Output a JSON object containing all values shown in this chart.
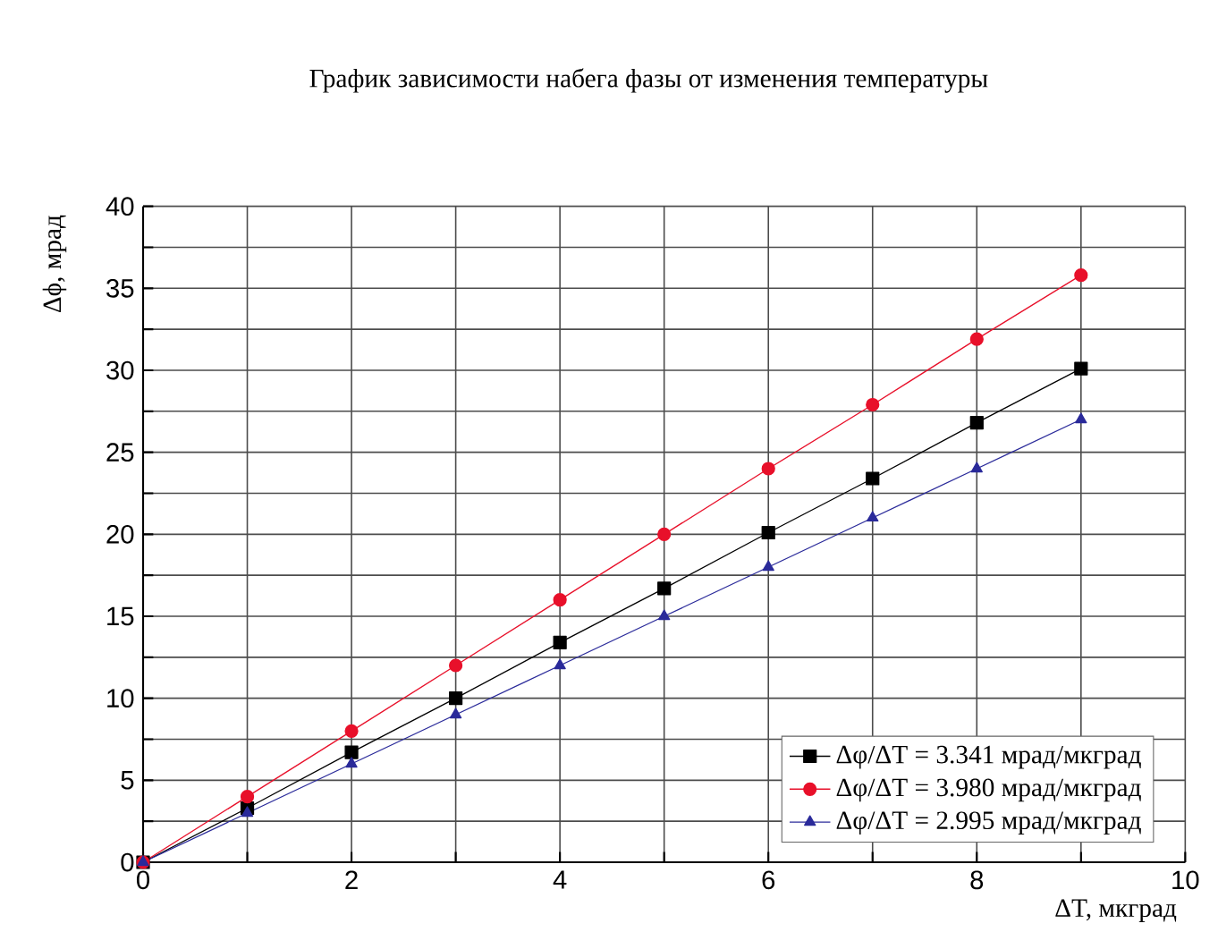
{
  "chart_data": {
    "type": "line",
    "title": "График зависимости набега фазы от изменения температуры",
    "xlabel": "ΔT, мкград",
    "ylabel": "Δϕ, мрад",
    "x": [
      0,
      1,
      2,
      3,
      4,
      5,
      6,
      7,
      8,
      9
    ],
    "series": [
      {
        "name": "Δφ/ΔT = 3.341 мрад/мкград",
        "color": "#000000",
        "marker": "square",
        "values": [
          0,
          3.3,
          6.7,
          10,
          13.4,
          16.7,
          20.1,
          23.4,
          26.8,
          30.1
        ]
      },
      {
        "name": "Δφ/ΔT = 3.980 мрад/мкград",
        "color": "#e8102a",
        "marker": "circle",
        "values": [
          0,
          4,
          8,
          12,
          16,
          20,
          24,
          27.9,
          31.9,
          35.8
        ]
      },
      {
        "name": "Δφ/ΔT = 2.995 мрад/мкград",
        "color": "#2a2a9a",
        "marker": "triangle",
        "values": [
          0,
          3,
          6,
          9,
          12,
          15,
          18,
          21,
          24,
          27
        ]
      }
    ],
    "xlim": [
      0,
      10
    ],
    "ylim": [
      0,
      40
    ],
    "xticks": [
      0,
      {
        "value": 1,
        "label": null
      },
      2,
      {
        "value": 3,
        "label": null
      },
      4,
      {
        "value": 5,
        "label": null
      },
      6,
      {
        "value": 7,
        "label": null
      },
      8,
      {
        "value": 9,
        "label": null
      },
      10
    ],
    "yticks": [
      0,
      {
        "value": 2.5,
        "label": null
      },
      5,
      {
        "value": 7.5,
        "label": null
      },
      10,
      {
        "value": 12.5,
        "label": null
      },
      15,
      {
        "value": 17.5,
        "label": null
      },
      20,
      {
        "value": 22.5,
        "label": null
      },
      25,
      {
        "value": 27.5,
        "label": null
      },
      30,
      {
        "value": 32.5,
        "label": null
      },
      35,
      {
        "value": 37.5,
        "label": null
      },
      40
    ],
    "grid": true,
    "legend": "bottom right",
    "line_style": "solid"
  }
}
